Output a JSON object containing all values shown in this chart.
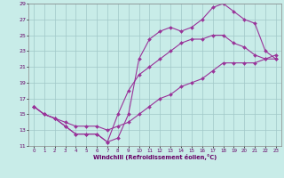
{
  "xlabel": "Windchill (Refroidissement éolien,°C)",
  "bg_color": "#c8ece8",
  "line_color": "#993399",
  "grid_color": "#a0c8c8",
  "xlim": [
    -0.5,
    23.5
  ],
  "ylim": [
    11,
    29
  ],
  "xticks": [
    0,
    1,
    2,
    3,
    4,
    5,
    6,
    7,
    8,
    9,
    10,
    11,
    12,
    13,
    14,
    15,
    16,
    17,
    18,
    19,
    20,
    21,
    22,
    23
  ],
  "yticks": [
    11,
    13,
    15,
    17,
    19,
    21,
    23,
    25,
    27,
    29
  ],
  "line1_x": [
    0,
    1,
    2,
    3,
    4,
    5,
    6,
    7,
    8,
    9,
    10,
    11,
    12,
    13,
    14,
    15,
    16,
    17,
    18,
    19,
    20,
    21,
    22,
    23
  ],
  "line1_y": [
    16,
    15,
    14.5,
    14,
    13.5,
    13.5,
    13.5,
    13,
    13.5,
    14,
    15,
    16,
    17,
    17.5,
    18.5,
    19,
    19.5,
    20.5,
    21.5,
    21.5,
    21.5,
    21.5,
    22,
    22.5
  ],
  "line2_x": [
    0,
    1,
    2,
    3,
    4,
    5,
    6,
    7,
    8,
    9,
    10,
    11,
    12,
    13,
    14,
    15,
    16,
    17,
    18,
    19,
    20,
    21,
    22,
    23
  ],
  "line2_y": [
    16,
    15,
    14.5,
    13.5,
    12.5,
    12.5,
    12.5,
    11.5,
    12,
    15,
    22,
    24.5,
    25.5,
    26,
    25.5,
    26,
    27,
    28.5,
    29,
    28,
    27,
    26.5,
    23,
    22
  ],
  "line3_x": [
    0,
    1,
    2,
    3,
    4,
    5,
    6,
    7,
    8,
    9,
    10,
    11,
    12,
    13,
    14,
    15,
    16,
    17,
    18,
    19,
    20,
    21,
    22,
    23
  ],
  "line3_y": [
    16,
    15,
    14.5,
    13.5,
    12.5,
    12.5,
    12.5,
    11.5,
    15,
    18,
    20,
    21,
    22,
    23,
    24,
    24.5,
    24.5,
    25,
    25,
    24,
    23.5,
    22.5,
    22,
    22
  ]
}
